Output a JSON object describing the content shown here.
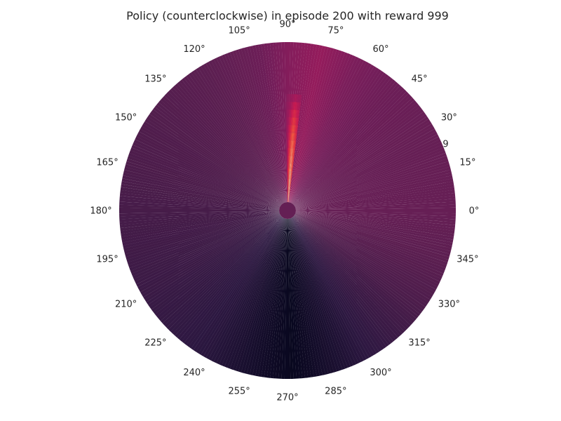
{
  "chart_data": {
    "type": "heatmap",
    "projection": "polar",
    "title": "Policy (counterclockwise) in episode 200 with reward 999",
    "angle_ticks": [
      "0°",
      "15°",
      "30°",
      "45°",
      "60°",
      "75°",
      "90°",
      "105°",
      "120°",
      "135°",
      "150°",
      "165°",
      "180°",
      "195°",
      "210°",
      "225°",
      "240°",
      "255°",
      "270°",
      "285°",
      "300°",
      "315°",
      "330°",
      "345°"
    ],
    "radial_tick_labels": [
      "9"
    ],
    "angle_direction": "counterclockwise",
    "grid": false,
    "colormap": "rocket",
    "colormap_stops": [
      "#03051a",
      "#2d1841",
      "#4c1d4b",
      "#5e1f52",
      "#741e5a",
      "#8a1d5c",
      "#a11a5b",
      "#cb1b4f",
      "#e13342",
      "#f0513b",
      "#f6755c",
      "#f69c73",
      "#f6c5a8",
      "#faebdd"
    ],
    "background_intensity": [
      {
        "angle": 0,
        "value": 0.26
      },
      {
        "angle": 30,
        "value": 0.26
      },
      {
        "angle": 50,
        "value": 0.28
      },
      {
        "angle": 65,
        "value": 0.33
      },
      {
        "angle": 78,
        "value": 0.42
      },
      {
        "angle": 90,
        "value": 0.36
      },
      {
        "angle": 100,
        "value": 0.28
      },
      {
        "angle": 120,
        "value": 0.22
      },
      {
        "angle": 150,
        "value": 0.17
      },
      {
        "angle": 180,
        "value": 0.14
      },
      {
        "angle": 210,
        "value": 0.11
      },
      {
        "angle": 240,
        "value": 0.07
      },
      {
        "angle": 265,
        "value": 0.02
      },
      {
        "angle": 272,
        "value": 0.01
      },
      {
        "angle": 290,
        "value": 0.05
      },
      {
        "angle": 320,
        "value": 0.14
      },
      {
        "angle": 345,
        "value": 0.23
      },
      {
        "angle": 360,
        "value": 0.26
      }
    ],
    "hot_sector": {
      "angle_from": 83,
      "angle_to": 91,
      "peak_angle": 86,
      "peak_value": 1.0
    }
  }
}
